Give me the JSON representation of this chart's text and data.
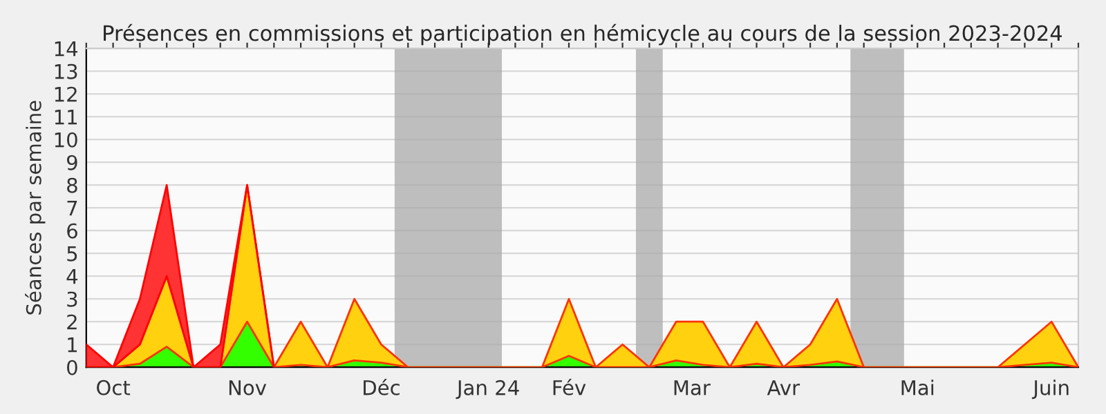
{
  "chart_data": {
    "type": "area",
    "stacked": true,
    "title": "Présences en commissions et participation en hémicycle au cours de la session 2023-2024",
    "ylabel": "Séances par semaine",
    "x": [
      "2023-09-25",
      "2023-10-02",
      "2023-10-09",
      "2023-10-16",
      "2023-10-23",
      "2023-10-30",
      "2023-11-06",
      "2023-11-13",
      "2023-11-20",
      "2023-11-27",
      "2023-12-04",
      "2023-12-11",
      "2023-12-18",
      "2023-12-25",
      "2024-01-01",
      "2024-01-08",
      "2024-01-15",
      "2024-01-22",
      "2024-01-29",
      "2024-02-05",
      "2024-02-12",
      "2024-02-19",
      "2024-02-26",
      "2024-03-04",
      "2024-03-11",
      "2024-03-18",
      "2024-03-25",
      "2024-04-01",
      "2024-04-08",
      "2024-04-15",
      "2024-04-22",
      "2024-04-29",
      "2024-05-06",
      "2024-05-13",
      "2024-05-20",
      "2024-05-27",
      "2024-06-03",
      "2024-06-10"
    ],
    "series": [
      {
        "color": "#33ff00",
        "values": [
          0,
          0,
          0.15,
          0.9,
          0,
          0,
          2,
          0,
          0.1,
          0,
          0.3,
          0.2,
          0,
          0,
          0,
          0,
          0,
          0,
          0.5,
          0,
          0,
          0,
          0.3,
          0.1,
          0,
          0.15,
          0,
          0.1,
          0.25,
          0,
          0,
          0,
          0,
          0,
          0,
          0.1,
          0.2,
          0
        ]
      },
      {
        "color": "#ffd10f",
        "values": [
          0,
          0,
          0.85,
          3.1,
          0,
          0,
          6,
          0,
          1.9,
          0,
          2.7,
          0.8,
          0,
          0,
          0,
          0,
          0,
          0,
          2.5,
          0,
          1,
          0,
          1.7,
          1.9,
          0,
          1.85,
          0,
          0.9,
          2.75,
          0,
          0,
          0,
          0,
          0,
          0,
          0.9,
          1.8,
          0
        ]
      },
      {
        "color": "#ff3333",
        "x": [
          "2023-09-25",
          "2023-10-02",
          "2023-10-09",
          "2023-10-16",
          "2023-10-23",
          "2023-10-30",
          "2023-11-06",
          "2023-11-13"
        ],
        "values": [
          1,
          0,
          2,
          4,
          0,
          1,
          0,
          0
        ]
      }
    ],
    "xlim": [
      "2023-09-25",
      "2024-06-10"
    ],
    "xticks": [
      {
        "value": "2023-09-25",
        "label": null
      },
      {
        "value": "2023-10-02",
        "label": "Oct"
      },
      {
        "value": "2023-10-09",
        "label": null
      },
      {
        "value": "2023-10-16",
        "label": null
      },
      {
        "value": "2023-10-23",
        "label": null
      },
      {
        "value": "2023-10-30",
        "label": null
      },
      {
        "value": "2023-11-06",
        "label": "Nov"
      },
      {
        "value": "2023-11-13",
        "label": null
      },
      {
        "value": "2023-11-20",
        "label": null
      },
      {
        "value": "2023-11-27",
        "label": null
      },
      {
        "value": "2023-12-04",
        "label": null
      },
      {
        "value": "2023-12-11",
        "label": "Déc"
      },
      {
        "value": "2023-12-18",
        "label": null
      },
      {
        "value": "2023-12-25",
        "label": null
      },
      {
        "value": "2024-01-01",
        "label": null
      },
      {
        "value": "2024-01-08",
        "label": "Jan 24"
      },
      {
        "value": "2024-01-15",
        "label": null
      },
      {
        "value": "2024-01-22",
        "label": null
      },
      {
        "value": "2024-01-29",
        "label": "Fév"
      },
      {
        "value": "2024-02-05",
        "label": null
      },
      {
        "value": "2024-02-12",
        "label": null
      },
      {
        "value": "2024-02-19",
        "label": null
      },
      {
        "value": "2024-02-26",
        "label": null
      },
      {
        "value": "2024-03-01",
        "label": "Mar"
      },
      {
        "value": "2024-03-04",
        "label": null
      },
      {
        "value": "2024-03-11",
        "label": null
      },
      {
        "value": "2024-03-18",
        "label": null
      },
      {
        "value": "2024-03-25",
        "label": "Avr"
      },
      {
        "value": "2024-04-01",
        "label": null
      },
      {
        "value": "2024-04-08",
        "label": null
      },
      {
        "value": "2024-04-15",
        "label": null
      },
      {
        "value": "2024-04-22",
        "label": null
      },
      {
        "value": "2024-04-29",
        "label": "Mai"
      },
      {
        "value": "2024-05-06",
        "label": null
      },
      {
        "value": "2024-05-13",
        "label": null
      },
      {
        "value": "2024-05-20",
        "label": null
      },
      {
        "value": "2024-05-27",
        "label": null
      },
      {
        "value": "2024-06-03",
        "label": "Juin"
      },
      {
        "value": "2024-06-10",
        "label": null
      }
    ],
    "ylim": [
      0,
      14
    ],
    "yticks": [
      0,
      1,
      2,
      3,
      4,
      5,
      6,
      7,
      8,
      9,
      10,
      11,
      12,
      13,
      14
    ],
    "grid": "y",
    "bands": [
      {
        "axis": "x",
        "from": "2023-12-14T12:00",
        "to": "2024-01-11T12:00",
        "color": "#aaaaaa"
      },
      {
        "axis": "x",
        "from": "2024-02-15T12:00",
        "to": "2024-02-22T12:00",
        "color": "#aaaaaa"
      },
      {
        "axis": "x",
        "from": "2024-04-11T12:00",
        "to": "2024-04-25T12:00",
        "color": "#aaaaaa"
      }
    ]
  }
}
